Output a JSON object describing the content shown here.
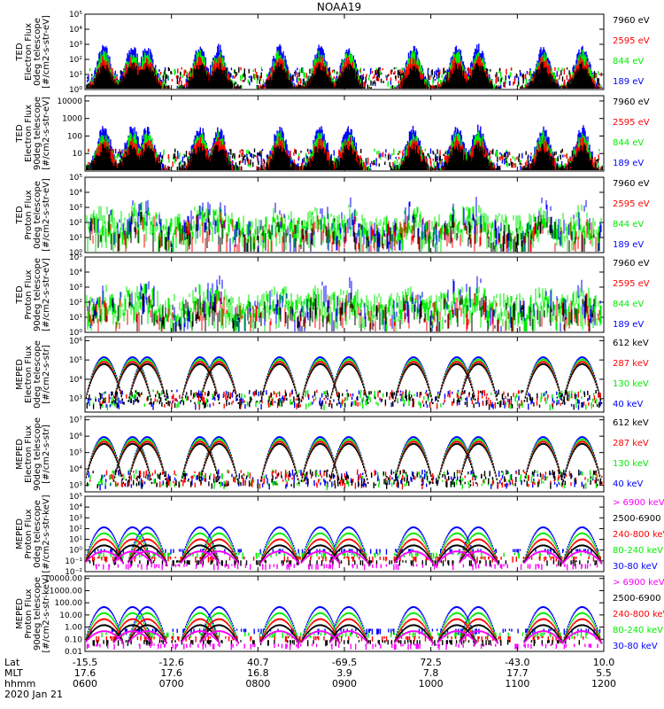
{
  "title": "NOAA19",
  "colors": {
    "black": "#000000",
    "red": "#ff0000",
    "green": "#00ee00",
    "blue": "#0000ff",
    "magenta": "#ff00ff",
    "axis": "#000000"
  },
  "chart_data": [
    {
      "type": "line",
      "id": "p1",
      "ylabel": [
        "TED",
        "Electron Flux",
        "0deg telescope",
        "[#/cm2-s-str-eV]"
      ],
      "yscale": "log",
      "ylim_exp": [
        0,
        5
      ],
      "ticks": [
        {
          "v": 0,
          "label": "10⁰"
        },
        {
          "v": 1,
          "label": "10¹"
        },
        {
          "v": 2,
          "label": "10²"
        },
        {
          "v": 3,
          "label": "10³"
        },
        {
          "v": 4,
          "label": "10⁴"
        },
        {
          "v": 5,
          "label": "10⁵"
        }
      ],
      "legend": [
        {
          "label": "7960 eV",
          "color": "black"
        },
        {
          "label": "2595 eV",
          "color": "red"
        },
        {
          "label": "844 eV",
          "color": "green"
        },
        {
          "label": "189 eV",
          "color": "blue"
        }
      ]
    },
    {
      "type": "line",
      "id": "p2",
      "ylabel": [
        "TED",
        "Electron Flux",
        "90deg telescope",
        "[#/cm2-s-str-eV]"
      ],
      "yscale": "log",
      "ylim_exp": [
        0,
        4.3
      ],
      "ticks": [
        {
          "v": 1,
          "label": "10"
        },
        {
          "v": 2,
          "label": "100"
        },
        {
          "v": 3,
          "label": "1000"
        },
        {
          "v": 4,
          "label": "10000"
        }
      ],
      "legend": [
        {
          "label": "7960 eV",
          "color": "black"
        },
        {
          "label": "2595 eV",
          "color": "red"
        },
        {
          "label": "844 eV",
          "color": "green"
        },
        {
          "label": "189 eV",
          "color": "blue"
        }
      ]
    },
    {
      "type": "line",
      "id": "p3",
      "ylabel": [
        "TED",
        "Proton Flux",
        "0deg telescope",
        "[#/cm2-s-str-eV]"
      ],
      "yscale": "log",
      "ylim_exp": [
        0,
        5
      ],
      "ticks": [
        {
          "v": 0,
          "label": "10⁰"
        },
        {
          "v": 1,
          "label": "10¹"
        },
        {
          "v": 2,
          "label": "10²"
        },
        {
          "v": 3,
          "label": "10³"
        },
        {
          "v": 4,
          "label": "10⁴"
        },
        {
          "v": 5,
          "label": "10⁵"
        }
      ],
      "legend": [
        {
          "label": "7960 eV",
          "color": "black"
        },
        {
          "label": "2595 eV",
          "color": "red"
        },
        {
          "label": "844 eV",
          "color": "green"
        },
        {
          "label": "189 eV",
          "color": "blue"
        }
      ]
    },
    {
      "type": "line",
      "id": "p4",
      "ylabel": [
        "TED",
        "Proton Flux",
        "90deg telescope",
        "[#/cm2-s-str-eV]"
      ],
      "yscale": "log",
      "ylim_exp": [
        0,
        5
      ],
      "ticks": [
        {
          "v": 0,
          "label": "10⁰"
        },
        {
          "v": 1,
          "label": "10¹"
        },
        {
          "v": 2,
          "label": "10²"
        },
        {
          "v": 3,
          "label": "10³"
        },
        {
          "v": 4,
          "label": "10⁴"
        },
        {
          "v": 5,
          "label": "10⁵"
        }
      ],
      "legend": [
        {
          "label": "7960 eV",
          "color": "black"
        },
        {
          "label": "2595 eV",
          "color": "red"
        },
        {
          "label": "844 eV",
          "color": "green"
        },
        {
          "label": "189 eV",
          "color": "blue"
        }
      ]
    },
    {
      "type": "line",
      "id": "p5",
      "ylabel": [
        "MEPED",
        "Electron Flux",
        "0deg telescope",
        "[#/cm2-s-str]"
      ],
      "yscale": "log",
      "ylim_exp": [
        2.3,
        6.2
      ],
      "ticks": [
        {
          "v": 3,
          "label": "10³"
        },
        {
          "v": 4,
          "label": "10⁴"
        },
        {
          "v": 5,
          "label": "10⁵"
        },
        {
          "v": 6,
          "label": "10⁶"
        }
      ],
      "legend": [
        {
          "label": "612 keV",
          "color": "black"
        },
        {
          "label": "287 keV",
          "color": "red"
        },
        {
          "label": "130 keV",
          "color": "green"
        },
        {
          "label": "40 keV",
          "color": "blue"
        }
      ]
    },
    {
      "type": "line",
      "id": "p6",
      "ylabel": [
        "MEPED",
        "Electron Flux",
        "90deg telescope",
        "[#/cm2-s-str]"
      ],
      "yscale": "log",
      "ylim_exp": [
        2.6,
        7.2
      ],
      "ticks": [
        {
          "v": 3,
          "label": "10³"
        },
        {
          "v": 4,
          "label": "10⁴"
        },
        {
          "v": 5,
          "label": "10⁵"
        },
        {
          "v": 6,
          "label": "10⁶"
        },
        {
          "v": 7,
          "label": "10⁷"
        }
      ],
      "legend": [
        {
          "label": "612 keV",
          "color": "black"
        },
        {
          "label": "287 keV",
          "color": "red"
        },
        {
          "label": "130 keV",
          "color": "green"
        },
        {
          "label": "40 keV",
          "color": "blue"
        }
      ]
    },
    {
      "type": "line",
      "id": "p7",
      "ylabel": [
        "MEPED",
        "Proton Flux",
        "0deg telescope",
        "[#/cm2-s-str-keV]"
      ],
      "yscale": "log",
      "ylim_exp": [
        -2,
        5
      ],
      "ticks": [
        {
          "v": -2,
          "label": "10⁻²"
        },
        {
          "v": -1,
          "label": "10⁻¹"
        },
        {
          "v": 0,
          "label": "10⁰"
        },
        {
          "v": 1,
          "label": "10¹"
        },
        {
          "v": 2,
          "label": "10²"
        },
        {
          "v": 3,
          "label": "10³"
        },
        {
          "v": 4,
          "label": "10⁴"
        },
        {
          "v": 5,
          "label": "10⁵"
        }
      ],
      "legend": [
        {
          "label": "> 6900 keV",
          "color": "magenta"
        },
        {
          "label": "2500-6900",
          "color": "black"
        },
        {
          "label": "240-800 keV",
          "color": "red"
        },
        {
          "label": "80-240 keV",
          "color": "green"
        },
        {
          "label": "30-80 keV",
          "color": "blue"
        }
      ]
    },
    {
      "type": "line",
      "id": "p8",
      "ylabel": [
        "MEPED",
        "Proton Flux",
        "90deg telescope",
        "[#/cm2-s-str-keV]"
      ],
      "yscale": "log",
      "ylim_exp": [
        -2,
        4.2
      ],
      "ticks": [
        {
          "v": -2,
          "label": "0.01"
        },
        {
          "v": -1,
          "label": "0.10"
        },
        {
          "v": 0,
          "label": "1.00"
        },
        {
          "v": 1,
          "label": "10.00"
        },
        {
          "v": 2,
          "label": "100.00"
        },
        {
          "v": 3,
          "label": "1000.00"
        },
        {
          "v": 4,
          "label": "10000.00"
        }
      ],
      "legend": [
        {
          "label": "> 6900 keV",
          "color": "magenta"
        },
        {
          "label": "2500-6900",
          "color": "black"
        },
        {
          "label": "240-800 keV",
          "color": "red"
        },
        {
          "label": "80-240 keV",
          "color": "green"
        },
        {
          "label": "30-80 keV",
          "color": "blue"
        }
      ]
    }
  ],
  "xaxis": {
    "row_labels": [
      "Lat",
      "MLT",
      "hhmm"
    ],
    "date": "2020 Jan 21",
    "ticks": [
      {
        "t": 0,
        "lat": "-15.5",
        "mlt": "17.6",
        "hhmm": "0600"
      },
      {
        "t": 1,
        "lat": "-12.6",
        "mlt": "17.6",
        "hhmm": "0700"
      },
      {
        "t": 2,
        "lat": "40.7",
        "mlt": "16.8",
        "hhmm": "0800"
      },
      {
        "t": 3,
        "lat": "-69.5",
        "mlt": "3.9",
        "hhmm": "0900"
      },
      {
        "t": 4,
        "lat": "72.5",
        "mlt": "7.8",
        "hhmm": "1000"
      },
      {
        "t": 5,
        "lat": "-43.0",
        "mlt": "17.7",
        "hhmm": "1100"
      },
      {
        "t": 6,
        "lat": "10.0",
        "mlt": "5.5",
        "hhmm": "1200"
      }
    ]
  },
  "passes": [
    {
      "center": 0.22,
      "kind": "south"
    },
    {
      "center": 0.55,
      "kind": "south"
    },
    {
      "center": 0.72,
      "kind": "south"
    },
    {
      "center": 1.33,
      "kind": "north"
    },
    {
      "center": 1.55,
      "kind": "north"
    },
    {
      "center": 2.25,
      "kind": "north"
    },
    {
      "center": 2.72,
      "kind": "south"
    },
    {
      "center": 3.05,
      "kind": "south"
    },
    {
      "center": 3.8,
      "kind": "north"
    },
    {
      "center": 4.3,
      "kind": "south"
    },
    {
      "center": 4.55,
      "kind": "south"
    },
    {
      "center": 5.3,
      "kind": "north"
    },
    {
      "center": 5.75,
      "kind": "north"
    }
  ]
}
